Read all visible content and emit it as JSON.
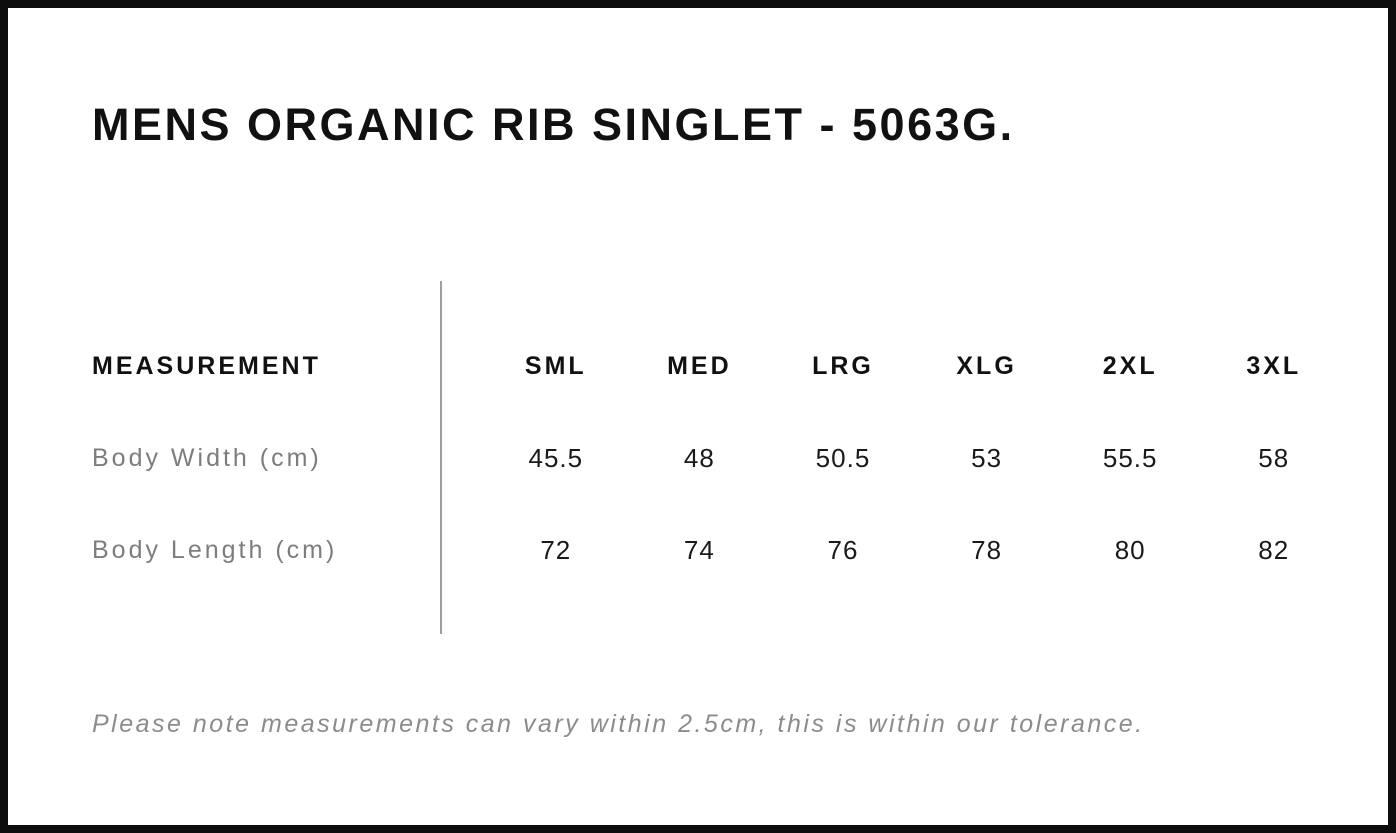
{
  "page": {
    "title": "MENS ORGANIC RIB SINGLET - 5063G.",
    "footnote": "Please note measurements can vary within 2.5cm, this is within our tolerance."
  },
  "size_chart": {
    "label_header": "MEASUREMENT",
    "size_headers": [
      "SML",
      "MED",
      "LRG",
      "XLG",
      "2XL",
      "3XL"
    ],
    "rows": [
      {
        "label": "Body Width (cm)",
        "values": [
          "45.5",
          "48",
          "50.5",
          "53",
          "55.5",
          "58"
        ]
      },
      {
        "label": "Body Length (cm)",
        "values": [
          "72",
          "74",
          "76",
          "78",
          "80",
          "82"
        ]
      }
    ]
  },
  "colors": {
    "frame": "#0d0d0d",
    "background": "#ffffff",
    "heading_text": "#111111",
    "value_text": "#1a1a1a",
    "label_text": "#7d7d7d",
    "footnote_text": "#8c8c8c",
    "divider": "#9e9e9e"
  }
}
